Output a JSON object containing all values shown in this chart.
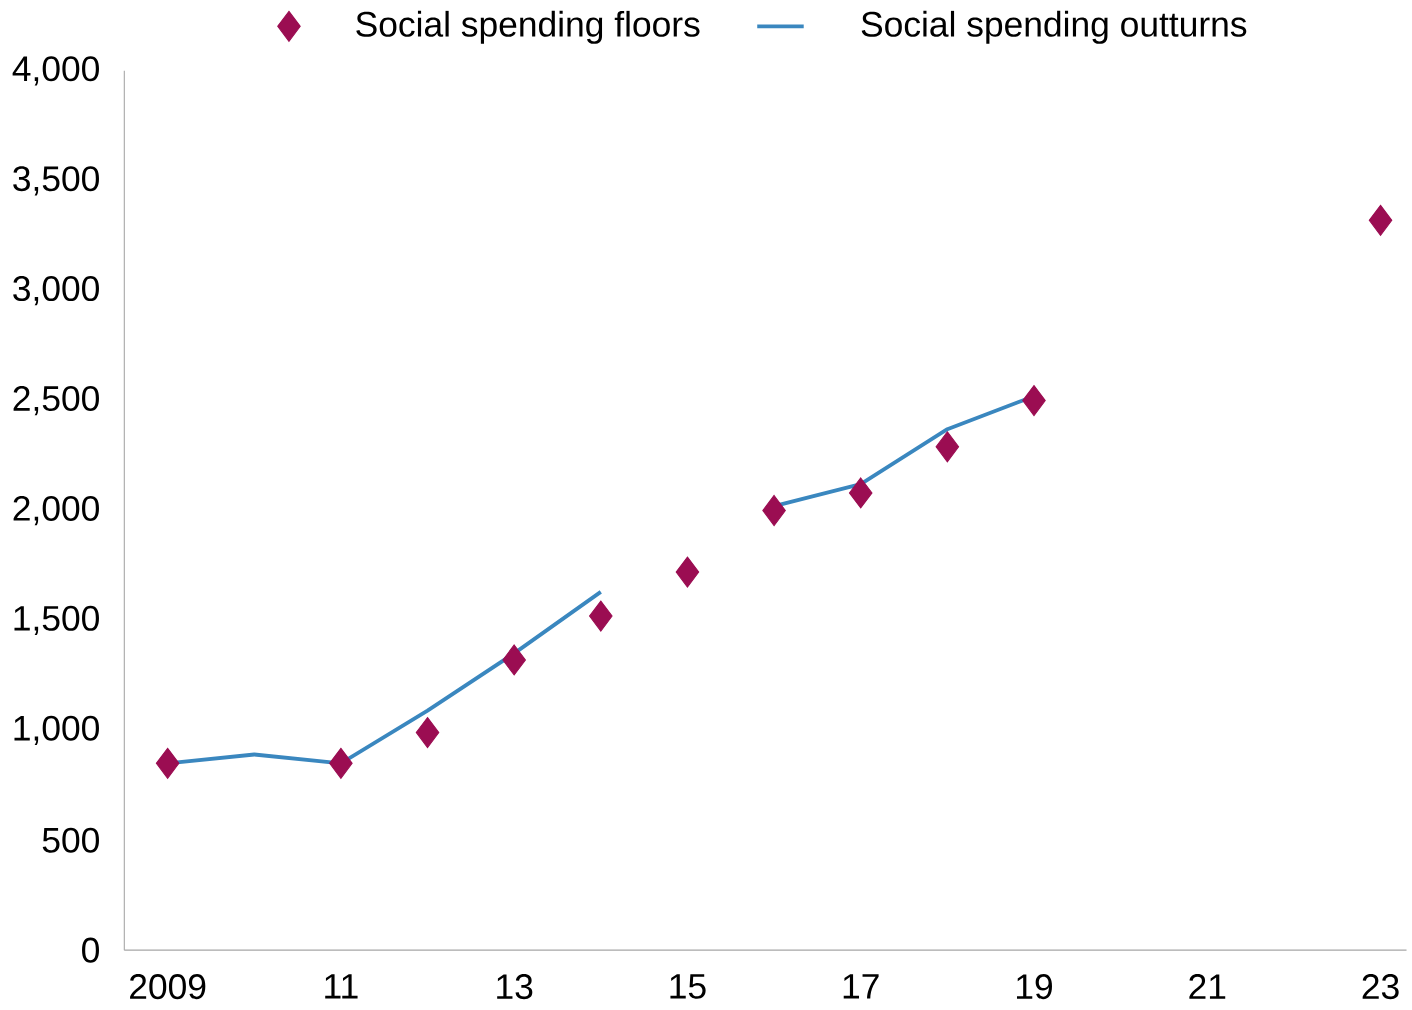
{
  "chart_data": {
    "type": "line",
    "xlim": [
      2008.5,
      2023.3
    ],
    "ylim": [
      0,
      4000
    ],
    "xticks": [
      {
        "value": 2009,
        "label": "2009"
      },
      {
        "value": 2011,
        "label": "11"
      },
      {
        "value": 2013,
        "label": "13"
      },
      {
        "value": 2015,
        "label": "15"
      },
      {
        "value": 2017,
        "label": "17"
      },
      {
        "value": 2019,
        "label": "19"
      },
      {
        "value": 2021,
        "label": "21"
      },
      {
        "value": 2023,
        "label": "23"
      }
    ],
    "yticks": [
      {
        "value": 0,
        "label": "0"
      },
      {
        "value": 500,
        "label": "500"
      },
      {
        "value": 1000,
        "label": "1,000"
      },
      {
        "value": 1500,
        "label": "1,500"
      },
      {
        "value": 2000,
        "label": "2,000"
      },
      {
        "value": 2500,
        "label": "2,500"
      },
      {
        "value": 3000,
        "label": "3,000"
      },
      {
        "value": 3500,
        "label": "3,500"
      },
      {
        "value": 4000,
        "label": "4,000"
      }
    ],
    "grid": false,
    "legend": "top",
    "series": [
      {
        "name": "Social spending floors",
        "type": "scatter",
        "marker": "diamond",
        "color": "#9b0d52",
        "x": [
          2009,
          2011,
          2012,
          2013,
          2014,
          2015,
          2016,
          2017,
          2018,
          2019,
          2023
        ],
        "values": [
          850,
          850,
          990,
          1320,
          1520,
          1720,
          2000,
          2080,
          2290,
          2500,
          3320
        ]
      },
      {
        "name": "Social spending outturns",
        "line_style": "solid",
        "color": "#3a87bf",
        "x": [
          2009,
          2010,
          2011,
          2012,
          2013,
          2014,
          2015,
          2016,
          2017,
          2018,
          2019
        ],
        "values": [
          850,
          890,
          850,
          1090,
          1350,
          1630,
          null,
          2020,
          2120,
          2370,
          2520
        ]
      }
    ]
  }
}
